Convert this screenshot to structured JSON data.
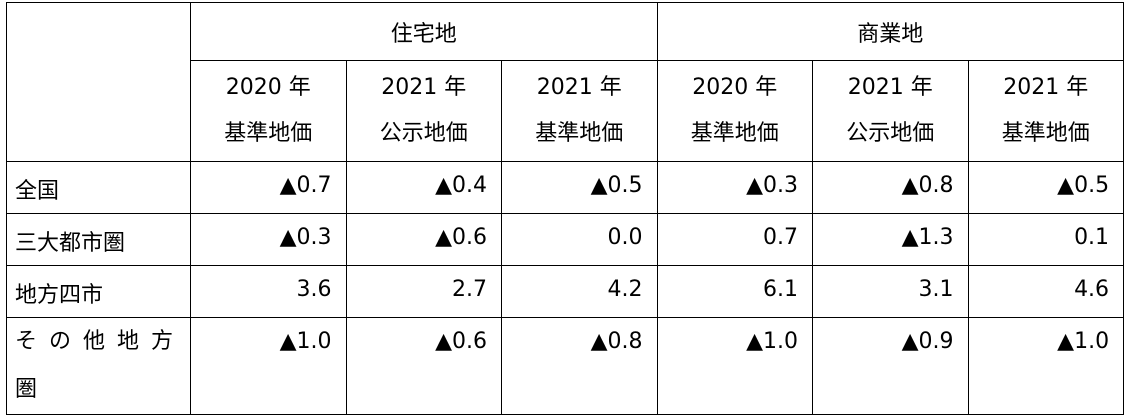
{
  "header": {
    "groups": [
      "住宅地",
      "商業地"
    ],
    "columns": [
      {
        "year": "2020 年",
        "type": "基準地価"
      },
      {
        "year": "2021 年",
        "type": "公示地価"
      },
      {
        "year": "2021 年",
        "type": "基準地価"
      },
      {
        "year": "2020 年",
        "type": "基準地価"
      },
      {
        "year": "2021 年",
        "type": "公示地価"
      },
      {
        "year": "2021 年",
        "type": "基準地価"
      }
    ]
  },
  "rows": [
    {
      "label": [
        "全国"
      ],
      "values": [
        "▲0.7",
        "▲0.4",
        "▲0.5",
        "▲0.3",
        "▲0.8",
        "▲0.5"
      ]
    },
    {
      "label": [
        "三大都市圏"
      ],
      "values": [
        "▲0.3",
        "▲0.6",
        "0.0",
        "0.7",
        "▲1.3",
        "0.1"
      ]
    },
    {
      "label": [
        "地方四市"
      ],
      "values": [
        "3.6",
        "2.7",
        "4.2",
        "6.1",
        "3.1",
        "4.6"
      ]
    },
    {
      "label": [
        "その他地方",
        "圏"
      ],
      "values": [
        "▲1.0",
        "▲0.6",
        "▲0.8",
        "▲1.0",
        "▲0.9",
        "▲1.0"
      ]
    }
  ]
}
